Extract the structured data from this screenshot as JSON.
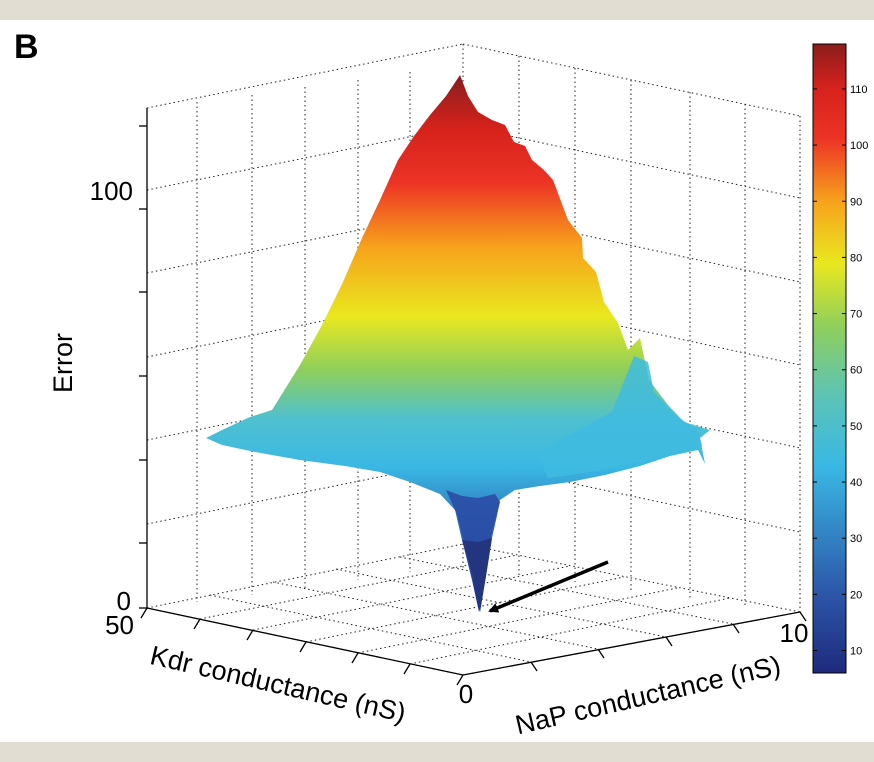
{
  "panel_label": "B",
  "chart_data": {
    "type": "surface3d",
    "title": "",
    "zlabel": "Error",
    "xlabel": "Kdr conductance (nS)",
    "ylabel": "NaP conductance (nS)",
    "xlim": [
      0,
      50
    ],
    "ylim": [
      0,
      10
    ],
    "zlim": [
      0,
      120
    ],
    "x_ticks": [
      "50",
      "0"
    ],
    "y_ticks": [
      "10"
    ],
    "z_ticks": [
      "0",
      "100"
    ],
    "grid": true,
    "colormap": "jet",
    "colorbar": {
      "range": [
        6,
        118
      ],
      "ticks": [
        10,
        20,
        30,
        40,
        50,
        60,
        70,
        80,
        90,
        100,
        110
      ]
    },
    "surface": {
      "peak_error": 118,
      "plateau_error": 45,
      "minimum_error": 4
    },
    "annotation": "arrow pointing to minimum error",
    "colors": {
      "jet_stops": [
        "#1e2a7c",
        "#2c54a7",
        "#3ab8e4",
        "#5cc3b6",
        "#8ecf5c",
        "#e9e81f",
        "#f7a21c",
        "#ec3325",
        "#d6221c",
        "#8a1d1c"
      ]
    }
  }
}
